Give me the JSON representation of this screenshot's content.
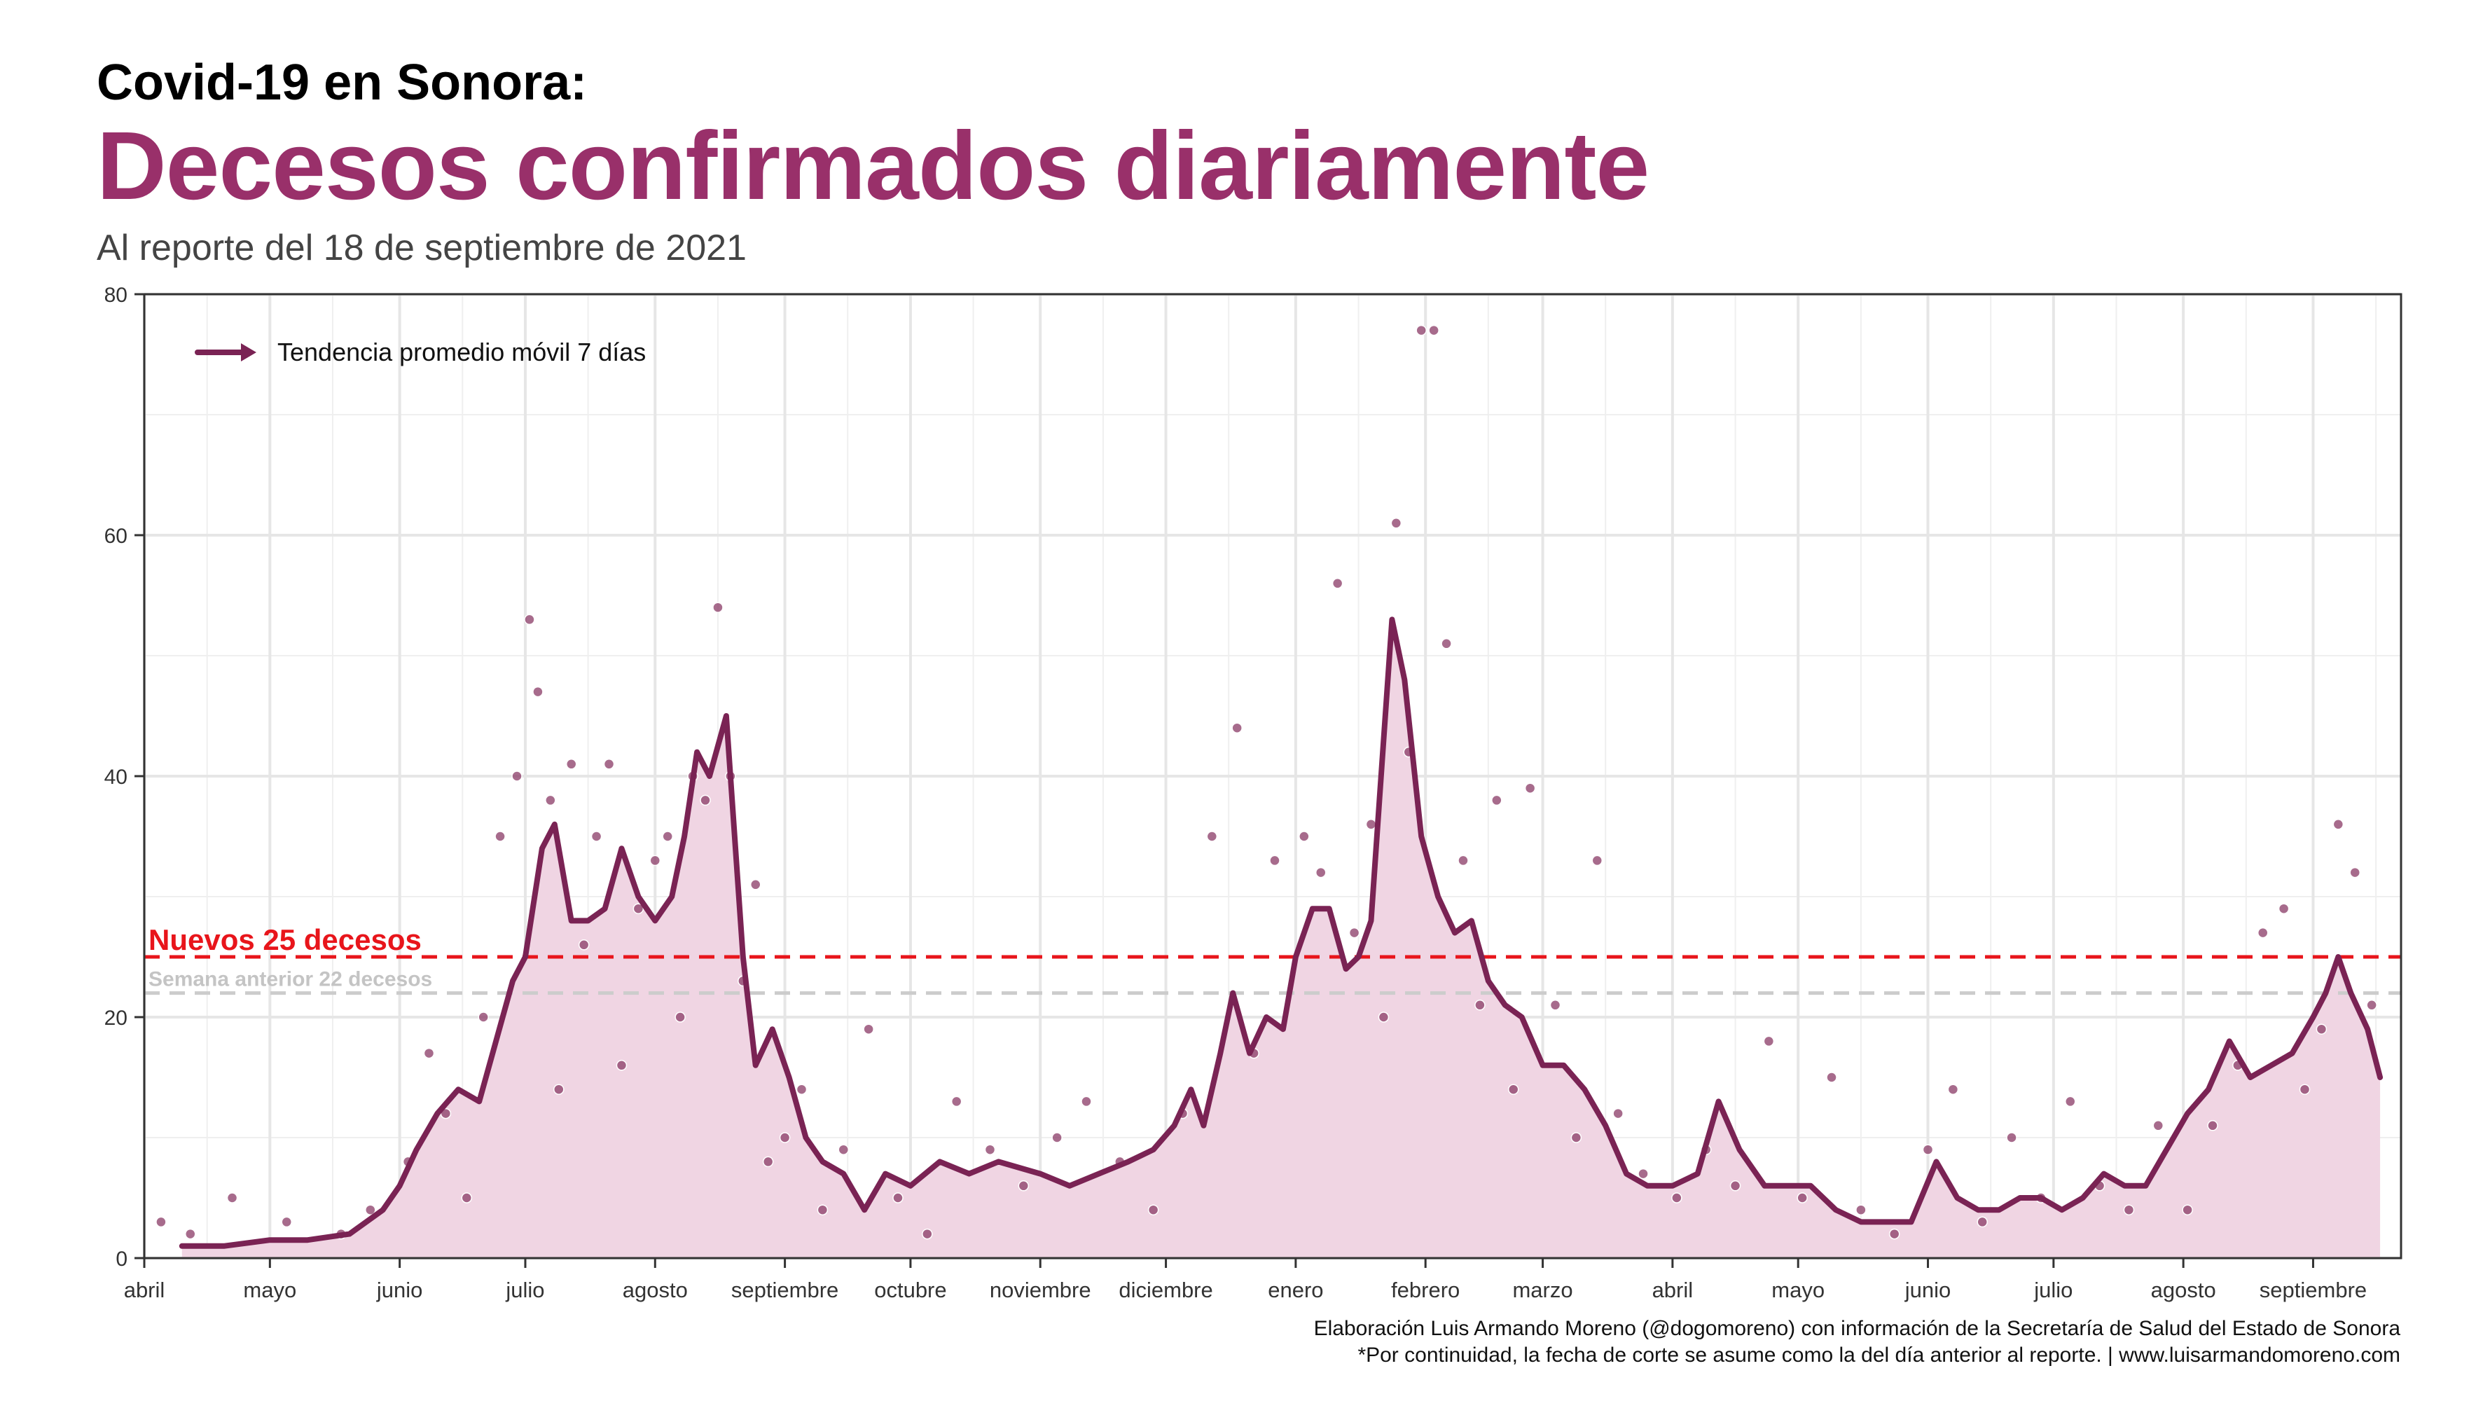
{
  "header": {
    "kicker": "Covid-19 en Sonora:",
    "title": "Decesos confirmados diariamente",
    "subtitle": "Al reporte del 18 de septiembre de 2021"
  },
  "footer": {
    "line1": "Elaboración Luis Armando Moreno (@dogomoreno) con información de la Secretaría de Salud del Estado de Sonora",
    "line2": "*Por continuidad, la fecha de corte se asume como la del día anterior al reporte. | www.luisarmandomoreno.com"
  },
  "colors": {
    "trend": "#7a2354",
    "area": "#f0d5e3",
    "points": "#8a3a66",
    "current_ref": "#e8151b",
    "previous_ref": "#cccccc",
    "grid": "#e6e6e6"
  },
  "chart_data": {
    "type": "line",
    "title": "Decesos confirmados diariamente",
    "xlabel": "",
    "ylabel": "",
    "ylim": [
      0,
      80
    ],
    "y_ticks": [
      0,
      20,
      40,
      60,
      80
    ],
    "x_tick_labels": [
      "abril",
      "mayo",
      "junio",
      "julio",
      "agosto",
      "septiembre",
      "octubre",
      "noviembre",
      "diciembre",
      "enero",
      "febrero",
      "marzo",
      "abril",
      "mayo",
      "junio",
      "julio",
      "agosto",
      "septiembre"
    ],
    "x_ticks": [
      "2020-04-01",
      "2020-05-01",
      "2020-06-01",
      "2020-07-01",
      "2020-08-01",
      "2020-09-01",
      "2020-10-01",
      "2020-11-01",
      "2020-12-01",
      "2021-01-01",
      "2021-02-01",
      "2021-03-01",
      "2021-04-01",
      "2021-05-01",
      "2021-06-01",
      "2021-07-01",
      "2021-08-01",
      "2021-09-01"
    ],
    "xlim": [
      "2020-04-01",
      "2021-09-22"
    ],
    "grid": true,
    "legend_position": "top-left",
    "legend_label": "Tendencia promedio móvil 7 días",
    "reference_lines": [
      {
        "label": "Nuevos 25 decesos",
        "value": 25,
        "style": "dashed"
      },
      {
        "label": "Semana anterior 22 decesos",
        "value": 22,
        "style": "dashed"
      }
    ],
    "series": [
      {
        "name": "Tendencia promedio móvil 7 días",
        "style": "line-with-area",
        "x": [
          "2020-04-10",
          "2020-04-20",
          "2020-05-01",
          "2020-05-10",
          "2020-05-20",
          "2020-05-28",
          "2020-06-01",
          "2020-06-05",
          "2020-06-10",
          "2020-06-15",
          "2020-06-20",
          "2020-06-24",
          "2020-06-28",
          "2020-07-01",
          "2020-07-05",
          "2020-07-08",
          "2020-07-12",
          "2020-07-16",
          "2020-07-20",
          "2020-07-24",
          "2020-07-28",
          "2020-08-01",
          "2020-08-05",
          "2020-08-08",
          "2020-08-11",
          "2020-08-14",
          "2020-08-18",
          "2020-08-22",
          "2020-08-25",
          "2020-08-29",
          "2020-09-02",
          "2020-09-06",
          "2020-09-10",
          "2020-09-15",
          "2020-09-20",
          "2020-09-25",
          "2020-10-01",
          "2020-10-08",
          "2020-10-15",
          "2020-10-22",
          "2020-11-01",
          "2020-11-08",
          "2020-11-15",
          "2020-11-22",
          "2020-11-28",
          "2020-12-03",
          "2020-12-07",
          "2020-12-10",
          "2020-12-14",
          "2020-12-17",
          "2020-12-21",
          "2020-12-25",
          "2020-12-29",
          "2021-01-01",
          "2021-01-05",
          "2021-01-09",
          "2021-01-13",
          "2021-01-16",
          "2021-01-19",
          "2021-01-21",
          "2021-01-24",
          "2021-01-27",
          "2021-01-31",
          "2021-02-04",
          "2021-02-08",
          "2021-02-12",
          "2021-02-16",
          "2021-02-20",
          "2021-02-24",
          "2021-03-01",
          "2021-03-06",
          "2021-03-11",
          "2021-03-16",
          "2021-03-21",
          "2021-03-26",
          "2021-04-01",
          "2021-04-07",
          "2021-04-12",
          "2021-04-17",
          "2021-04-23",
          "2021-04-28",
          "2021-05-04",
          "2021-05-10",
          "2021-05-16",
          "2021-05-22",
          "2021-05-28",
          "2021-06-03",
          "2021-06-08",
          "2021-06-13",
          "2021-06-18",
          "2021-06-23",
          "2021-06-28",
          "2021-07-03",
          "2021-07-08",
          "2021-07-13",
          "2021-07-18",
          "2021-07-23",
          "2021-07-28",
          "2021-08-02",
          "2021-08-07",
          "2021-08-12",
          "2021-08-17",
          "2021-08-22",
          "2021-08-27",
          "2021-09-01",
          "2021-09-04",
          "2021-09-07",
          "2021-09-10",
          "2021-09-14",
          "2021-09-17"
        ],
        "y": [
          1,
          1,
          1.5,
          1.5,
          2,
          4,
          6,
          9,
          12,
          14,
          13,
          18,
          23,
          25,
          34,
          36,
          28,
          28,
          29,
          34,
          30,
          28,
          30,
          35,
          42,
          40,
          45,
          25,
          16,
          19,
          15,
          10,
          8,
          7,
          4,
          7,
          6,
          8,
          7,
          8,
          7,
          6,
          7,
          8,
          9,
          11,
          14,
          11,
          17,
          22,
          17,
          20,
          19,
          25,
          29,
          29,
          24,
          25,
          28,
          38,
          53,
          48,
          35,
          30,
          27,
          28,
          23,
          21,
          20,
          16,
          16,
          14,
          11,
          7,
          6,
          6,
          7,
          13,
          9,
          6,
          6,
          6,
          4,
          3,
          3,
          3,
          8,
          5,
          4,
          4,
          5,
          5,
          4,
          5,
          7,
          6,
          6,
          9,
          12,
          14,
          18,
          15,
          16,
          17,
          20,
          22,
          25,
          22,
          19,
          15
        ]
      },
      {
        "name": "",
        "style": "points",
        "x": [
          "2020-04-05",
          "2020-04-12",
          "2020-04-22",
          "2020-05-05",
          "2020-05-18",
          "2020-05-25",
          "2020-06-03",
          "2020-06-08",
          "2020-06-12",
          "2020-06-17",
          "2020-06-21",
          "2020-06-25",
          "2020-06-29",
          "2020-07-02",
          "2020-07-04",
          "2020-07-07",
          "2020-07-09",
          "2020-07-12",
          "2020-07-15",
          "2020-07-18",
          "2020-07-21",
          "2020-07-24",
          "2020-07-28",
          "2020-08-01",
          "2020-08-04",
          "2020-08-07",
          "2020-08-10",
          "2020-08-13",
          "2020-08-16",
          "2020-08-19",
          "2020-08-22",
          "2020-08-25",
          "2020-08-28",
          "2020-09-01",
          "2020-09-05",
          "2020-09-10",
          "2020-09-15",
          "2020-09-21",
          "2020-09-28",
          "2020-10-05",
          "2020-10-12",
          "2020-10-20",
          "2020-10-28",
          "2020-11-05",
          "2020-11-12",
          "2020-11-20",
          "2020-11-28",
          "2020-12-05",
          "2020-12-12",
          "2020-12-18",
          "2020-12-22",
          "2020-12-27",
          "2021-01-03",
          "2021-01-07",
          "2021-01-11",
          "2021-01-15",
          "2021-01-19",
          "2021-01-22",
          "2021-01-25",
          "2021-01-28",
          "2021-01-31",
          "2021-02-03",
          "2021-02-06",
          "2021-02-10",
          "2021-02-14",
          "2021-02-18",
          "2021-02-22",
          "2021-02-26",
          "2021-03-04",
          "2021-03-09",
          "2021-03-14",
          "2021-03-19",
          "2021-03-25",
          "2021-04-02",
          "2021-04-09",
          "2021-04-16",
          "2021-04-24",
          "2021-05-02",
          "2021-05-09",
          "2021-05-16",
          "2021-05-24",
          "2021-06-01",
          "2021-06-07",
          "2021-06-14",
          "2021-06-21",
          "2021-06-28",
          "2021-07-05",
          "2021-07-12",
          "2021-07-19",
          "2021-07-26",
          "2021-08-02",
          "2021-08-08",
          "2021-08-14",
          "2021-08-20",
          "2021-08-25",
          "2021-08-30",
          "2021-09-03",
          "2021-09-07",
          "2021-09-11",
          "2021-09-15"
        ],
        "y": [
          3,
          2,
          5,
          3,
          2,
          4,
          8,
          17,
          12,
          5,
          20,
          35,
          40,
          53,
          47,
          38,
          14,
          41,
          26,
          35,
          41,
          16,
          29,
          33,
          35,
          20,
          40,
          38,
          54,
          40,
          23,
          31,
          8,
          10,
          14,
          4,
          9,
          19,
          5,
          2,
          13,
          9,
          6,
          10,
          13,
          8,
          4,
          12,
          35,
          44,
          17,
          33,
          35,
          32,
          56,
          27,
          36,
          20,
          61,
          42,
          77,
          77,
          51,
          33,
          21,
          38,
          14,
          39,
          21,
          10,
          33,
          12,
          7,
          5,
          9,
          6,
          18,
          5,
          15,
          4,
          2,
          9,
          14,
          3,
          10,
          5,
          13,
          6,
          4,
          11,
          4,
          11,
          16,
          27,
          29,
          14,
          19,
          36,
          32,
          21
        ]
      }
    ]
  }
}
